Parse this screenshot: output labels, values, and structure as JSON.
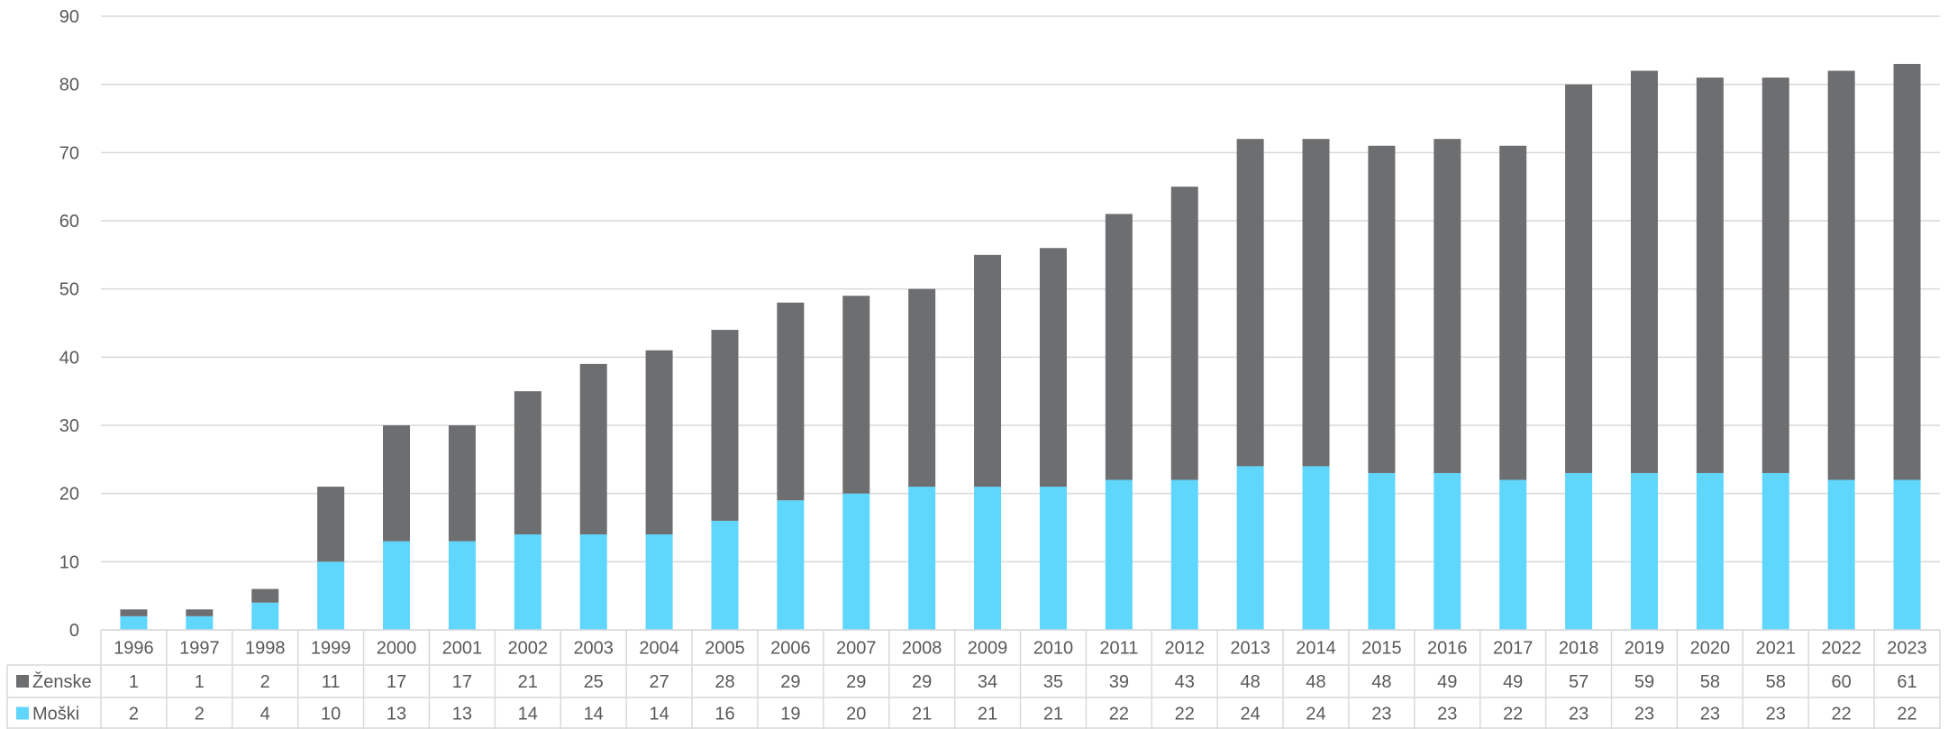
{
  "colors": {
    "zenske": "#6d6e70",
    "moski": "#5fd6fb",
    "grid": "#d9d9d9",
    "text": "#595959"
  },
  "chart_data": {
    "type": "bar",
    "stacked": true,
    "categories": [
      "1996",
      "1997",
      "1998",
      "1999",
      "2000",
      "2001",
      "2002",
      "2003",
      "2004",
      "2005",
      "2006",
      "2007",
      "2008",
      "2009",
      "2010",
      "2011",
      "2012",
      "2013",
      "2014",
      "2015",
      "2016",
      "2017",
      "2018",
      "2019",
      "2020",
      "2021",
      "2022",
      "2023"
    ],
    "series": [
      {
        "name": "Moški",
        "values": [
          2,
          2,
          4,
          10,
          13,
          13,
          14,
          14,
          14,
          16,
          19,
          20,
          21,
          21,
          21,
          22,
          22,
          24,
          24,
          23,
          23,
          22,
          23,
          23,
          23,
          23,
          22,
          22
        ]
      },
      {
        "name": "Ženske",
        "values": [
          1,
          1,
          2,
          11,
          17,
          17,
          21,
          25,
          27,
          28,
          29,
          29,
          29,
          34,
          35,
          39,
          43,
          48,
          48,
          48,
          49,
          49,
          57,
          59,
          58,
          58,
          60,
          61
        ]
      }
    ],
    "ylim": [
      0,
      90
    ],
    "yticks": [
      0,
      10,
      20,
      30,
      40,
      50,
      60,
      70,
      80,
      90
    ],
    "grid": true,
    "legend": "data-table",
    "title": "",
    "xlabel": "",
    "ylabel": ""
  }
}
